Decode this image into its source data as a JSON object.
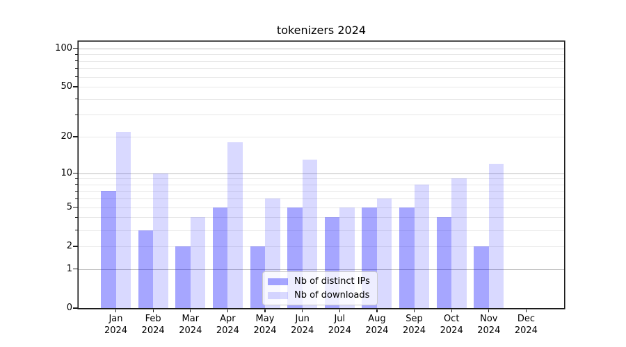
{
  "chart_data": {
    "type": "bar",
    "title": "tokenizers 2024",
    "categories": [
      "Jan",
      "Feb",
      "Mar",
      "Apr",
      "May",
      "Jun",
      "Jul",
      "Aug",
      "Sep",
      "Oct",
      "Nov",
      "Dec"
    ],
    "x_tick_year": "2024",
    "series": [
      {
        "name": "Nb of distinct IPs",
        "color": "#0000ff",
        "alpha": 0.35,
        "values": [
          7,
          3,
          2,
          5,
          2,
          5,
          4,
          5,
          5,
          4,
          2,
          0
        ]
      },
      {
        "name": "Nb of downloads",
        "color": "#0000ff",
        "alpha": 0.15,
        "values": [
          22,
          10,
          4,
          18,
          6,
          13,
          5,
          6,
          8,
          9,
          12,
          0
        ]
      }
    ],
    "yscale": "log1p",
    "y_ticks": [
      0,
      1,
      2,
      5,
      10,
      20,
      50,
      100
    ],
    "ylim": [
      0,
      113
    ],
    "grid": "horizontal",
    "grid_major_values": [
      1,
      10,
      100
    ],
    "colors": {
      "grid_major": "#bdbdbd",
      "grid_minor": "#e7e7e7",
      "spine": "#1a1a1a",
      "background": "#ffffff"
    },
    "legend_position": "lower-center-inside"
  }
}
